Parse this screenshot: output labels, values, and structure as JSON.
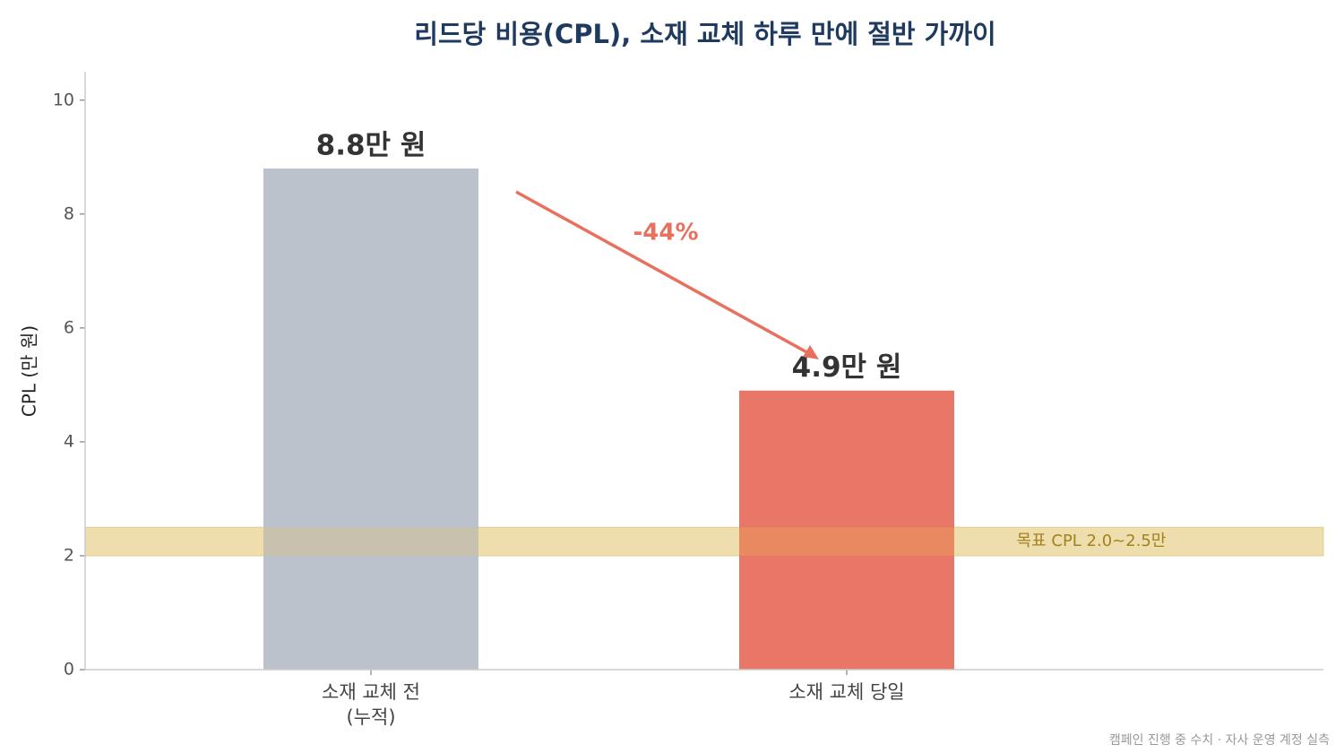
{
  "chart_data": {
    "type": "bar",
    "title": "리드당 비용(CPL), 소재 교체 하루 만에 절반 가까이",
    "ylabel": "CPL (만 원)",
    "categories": [
      "소재 교체 전\n(누적)",
      "소재 교체 당일"
    ],
    "values": [
      8.8,
      4.9
    ],
    "value_labels": [
      "8.8만 원",
      "4.9만 원"
    ],
    "colors": [
      "#b8bfc9",
      "#e8705f"
    ],
    "ylim": [
      0,
      10.5
    ],
    "yticks": [
      0,
      2,
      4,
      6,
      8,
      10
    ],
    "target_band": {
      "range": [
        2.0,
        2.5
      ],
      "label": "목표 CPL 2.0~2.5만",
      "color": "#f0e6c8"
    },
    "annotation": "-44%",
    "source": "캠페인 진행 중 수치 · 자사 운영 계정 실측"
  }
}
